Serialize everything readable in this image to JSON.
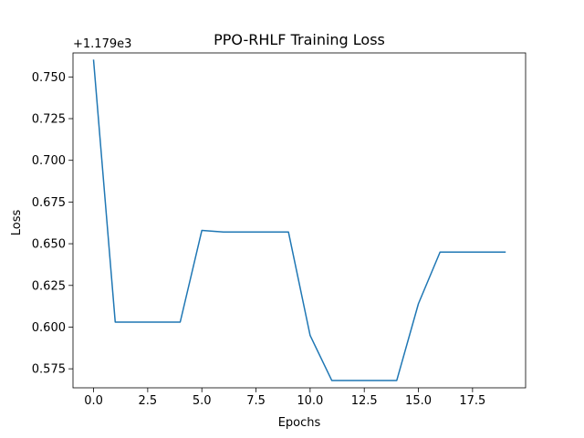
{
  "chart_data": {
    "type": "line",
    "title": "PPO-RHLF Training Loss",
    "xlabel": "Epochs",
    "ylabel": "Loss",
    "y_offset_label": "+1.179e3",
    "y_offset_value": 1179,
    "xlim": [
      -0.95,
      19.95
    ],
    "ylim": [
      0.5636,
      0.7644
    ],
    "x_ticks": [
      0.0,
      2.5,
      5.0,
      7.5,
      10.0,
      12.5,
      15.0,
      17.5
    ],
    "x_tick_labels": [
      "0.0",
      "2.5",
      "5.0",
      "7.5",
      "10.0",
      "12.5",
      "15.0",
      "17.5"
    ],
    "y_ticks": [
      0.575,
      0.6,
      0.625,
      0.65,
      0.675,
      0.7,
      0.725,
      0.75
    ],
    "y_tick_labels": [
      "0.575",
      "0.600",
      "0.625",
      "0.650",
      "0.675",
      "0.700",
      "0.725",
      "0.750"
    ],
    "grid": false,
    "legend": "none",
    "series": [
      {
        "color": "#1f77b4",
        "x": [
          0,
          1,
          2,
          3,
          4,
          5,
          6,
          7,
          8,
          9,
          10,
          11,
          12,
          13,
          14,
          15,
          16,
          17,
          18,
          19
        ],
        "y": [
          0.76,
          0.603,
          0.603,
          0.603,
          0.603,
          0.658,
          0.657,
          0.657,
          0.657,
          0.657,
          0.595,
          0.568,
          0.568,
          0.568,
          0.568,
          0.614,
          0.645,
          0.645,
          0.645,
          0.645
        ]
      }
    ]
  }
}
